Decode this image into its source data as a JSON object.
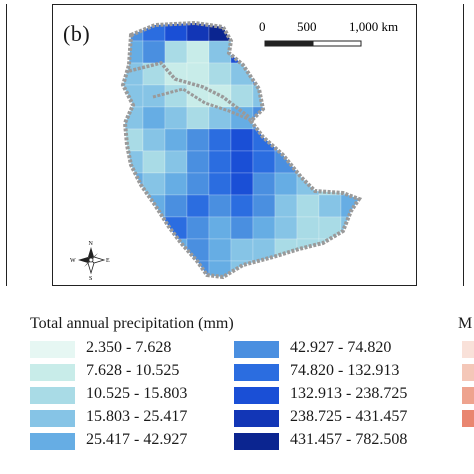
{
  "panel_label": "(b)",
  "scale_bar": {
    "ticks": [
      "0",
      "500",
      "1,000 km"
    ]
  },
  "north_arrow": {
    "n": "N",
    "s": "S",
    "e": "E",
    "w": "W"
  },
  "legend": {
    "title": "Total  annual precipitation (mm)",
    "classes": [
      {
        "label": "2.350 - 7.628",
        "color": "#e6f7f3"
      },
      {
        "label": "7.628 - 10.525",
        "color": "#c8ece9"
      },
      {
        "label": "10.525 - 15.803",
        "color": "#a9dbe6"
      },
      {
        "label": "15.803 - 25.417",
        "color": "#86c4e6"
      },
      {
        "label": "25.417 - 42.927",
        "color": "#66ade4"
      },
      {
        "label": "42.927 - 74.820",
        "color": "#4a8fe0"
      },
      {
        "label": "74.820 - 132.913",
        "color": "#2b6de0"
      },
      {
        "label": "132.913 - 238.725",
        "color": "#1a4fd6"
      },
      {
        "label": "238.725 - 431.457",
        "color": "#1236b6"
      },
      {
        "label": "431.457 - 782.508",
        "color": "#0b2590"
      }
    ]
  },
  "right_panel": {
    "legend_title_fragment": "M",
    "swatch_colors": [
      "#f9e1d9",
      "#f4c7b8",
      "#eea38e",
      "#e98670"
    ]
  }
}
